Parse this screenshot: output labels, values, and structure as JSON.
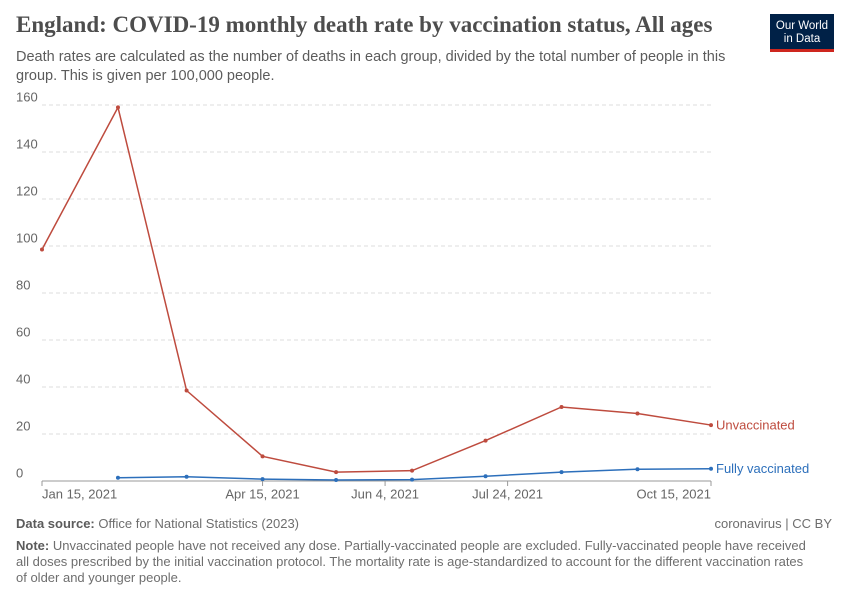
{
  "chart_data": {
    "type": "line",
    "title": "England: COVID-19 monthly death rate by vaccination status, All ages",
    "subtitle": "Death rates are calculated as the number of deaths in each group, divided by the total number of people in this group. This is given per 100,000 people.",
    "logo": [
      "Our World",
      "in Data"
    ],
    "source_label": "Data source:",
    "source": "Office for National Statistics (2023)",
    "license": "coronavirus | CC BY",
    "note_label": "Note:",
    "note": "Unvaccinated people have not received any dose. Partially-vaccinated people are excluded. Fully-vaccinated people have received all doses prescribed by the initial vaccination protocol. The mortality rate is age-standardized to account for the different vaccination rates of older and younger people.",
    "x": [
      "2021-01-15",
      "2021-02-15",
      "2021-03-15",
      "2021-04-15",
      "2021-05-15",
      "2021-06-15",
      "2021-07-15",
      "2021-08-15",
      "2021-09-15",
      "2021-10-15"
    ],
    "series": [
      {
        "name": "Unvaccinated",
        "color": "#be4b3e",
        "values": [
          98.5,
          159,
          38.5,
          10.5,
          3.8,
          4.4,
          17.2,
          31.5,
          28.7,
          23.8
        ]
      },
      {
        "name": "Fully vaccinated",
        "color": "#2c6fbb",
        "values": [
          null,
          1.4,
          1.8,
          0.8,
          0.4,
          0.6,
          2.0,
          3.8,
          5.0,
          5.2
        ]
      }
    ],
    "xlim": [
      "2021-01-15",
      "2021-10-15"
    ],
    "xticks": [
      {
        "value": "2021-01-15",
        "label": "Jan 15, 2021"
      },
      {
        "value": "2021-04-15",
        "label": "Apr 15, 2021"
      },
      {
        "value": "2021-06-04",
        "label": "Jun 4, 2021"
      },
      {
        "value": "2021-07-24",
        "label": "Jul 24, 2021"
      },
      {
        "value": "2021-10-15",
        "label": "Oct 15, 2021"
      }
    ],
    "ylim": [
      0,
      160
    ],
    "yticks": [
      0,
      20,
      40,
      60,
      80,
      100,
      120,
      140,
      160
    ],
    "grid": true
  }
}
